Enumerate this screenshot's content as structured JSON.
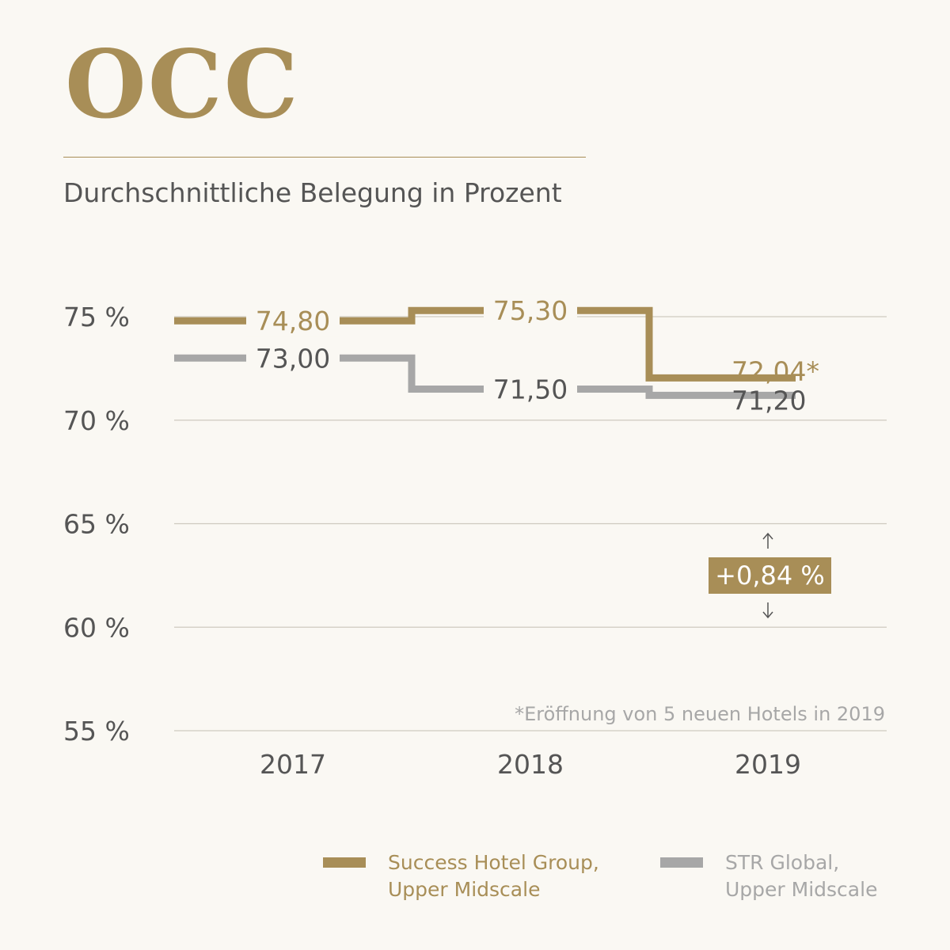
{
  "header": {
    "title": "OCC",
    "subtitle": "Durchschnittliche Belegung in Prozent"
  },
  "colors": {
    "gold": "#a88e57",
    "gray": "#a7a7a7",
    "text": "#555555"
  },
  "chart_data": {
    "type": "line",
    "step": true,
    "categories": [
      "2017",
      "2018",
      "2019"
    ],
    "ylim": [
      55,
      75
    ],
    "yticks": [
      75,
      70,
      65,
      60,
      55
    ],
    "ytick_labels": [
      "75 %",
      "70 %",
      "65 %",
      "60 %",
      "55 %"
    ],
    "grid": true,
    "series": [
      {
        "name": "Success Hotel Group, Upper Midscale",
        "values": [
          74.8,
          75.3,
          72.04
        ],
        "labels": [
          "74,80",
          "75,30",
          "72,04*"
        ],
        "color": "#a88e57"
      },
      {
        "name": "STR Global, Upper Midscale",
        "values": [
          73.0,
          71.5,
          71.2
        ],
        "labels": [
          "73,00",
          "71,50",
          "71,20"
        ],
        "color": "#a7a7a7"
      }
    ],
    "annotation": "+0,84 %",
    "footnote": "*Eröffnung von 5 neuen Hotels in 2019"
  },
  "legend": {
    "items": [
      {
        "label": "Success Hotel Group,\nUpper Midscale",
        "color": "#a88e57"
      },
      {
        "label": "STR Global,\nUpper Midscale",
        "color": "#a7a7a7"
      }
    ]
  }
}
